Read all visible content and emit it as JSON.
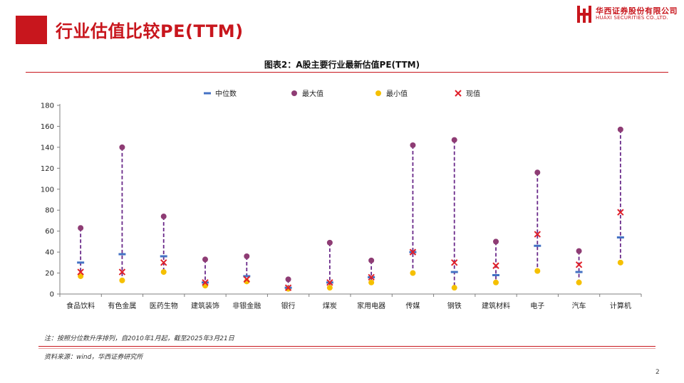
{
  "header": {
    "title": "行业估值比较PE(TTM)",
    "logo_cn": "华西证券股份有限公司",
    "logo_en": "HUAXI SECURITIES CO.,LTD."
  },
  "chart_title": "图表2：A股主要行业最新估值PE(TTM)",
  "note": "注：按照分位数升序排列，自2010年1月起，截至2025年3月21日",
  "source": "资料来源：wind，华西证券研究所",
  "page_number": "2",
  "colors": {
    "accent": "#c8161d",
    "median": "#4472c4",
    "max": "#8e3c74",
    "min": "#f5c000",
    "current": "#e0202a",
    "range": "#6a2a8a"
  },
  "chart_data": {
    "type": "scatter",
    "categories": [
      "食品饮料",
      "有色金属",
      "医药生物",
      "建筑装饰",
      "非银金融",
      "银行",
      "煤炭",
      "家用电器",
      "传媒",
      "钢铁",
      "建筑材料",
      "电子",
      "汽车",
      "计算机"
    ],
    "series": [
      {
        "name": "中位数",
        "marker": "dash",
        "values": [
          30,
          38,
          36,
          11,
          17,
          6,
          11,
          16,
          40,
          21,
          18,
          46,
          21,
          54
        ]
      },
      {
        "name": "最大值",
        "marker": "circle",
        "values": [
          63,
          140,
          74,
          33,
          36,
          14,
          49,
          32,
          142,
          147,
          50,
          116,
          41,
          157
        ]
      },
      {
        "name": "最小值",
        "marker": "circle",
        "values": [
          17,
          13,
          21,
          8,
          12,
          5,
          6,
          11,
          20,
          6,
          11,
          22,
          11,
          30
        ]
      },
      {
        "name": "现值",
        "marker": "x",
        "values": [
          21,
          21,
          30,
          11,
          14,
          6,
          11,
          16,
          40,
          30,
          27,
          57,
          28,
          78
        ]
      }
    ],
    "ylim": [
      0,
      180
    ],
    "yticks": [
      0,
      20,
      40,
      60,
      80,
      100,
      120,
      140,
      160,
      180
    ],
    "grid": false,
    "legend_position": "top"
  }
}
